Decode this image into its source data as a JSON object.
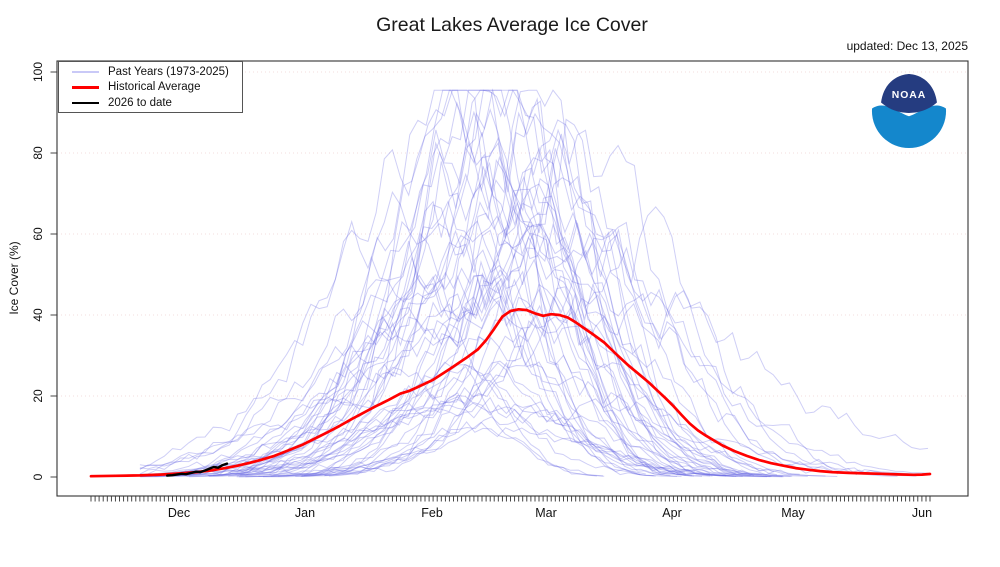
{
  "title": "Great Lakes Average Ice Cover",
  "updated_label": "updated: Dec 13, 2025",
  "legend": {
    "position": "topleft",
    "items": [
      {
        "label": "Past Years (1973-2025)",
        "color": "#c9c9f7"
      },
      {
        "label": "Historical Average",
        "color": "#ff0000"
      },
      {
        "label": "2026 to date",
        "color": "#000000"
      }
    ]
  },
  "noaa_logo": {
    "text": "NOAA",
    "navy": "#253c80",
    "blue": "#1487cc"
  },
  "chart_data": {
    "type": "line",
    "title": "Great Lakes Average Ice Cover",
    "xlabel": "",
    "ylabel": "Ice Cover (%)",
    "ylim": [
      0,
      100
    ],
    "y_ticks": [
      0,
      20,
      40,
      60,
      80,
      100
    ],
    "grid": "faint dotted horizontal lines at y ticks",
    "x_axis_note": "daily tick marks, season runs early Nov through early Jun",
    "season_length_days": 207,
    "x_months": [
      {
        "label": "Dec",
        "day": 21.6
      },
      {
        "label": "Jan",
        "day": 52.6
      },
      {
        "label": "Feb",
        "day": 83.6
      },
      {
        "label": "Mar",
        "day": 111.6
      },
      {
        "label": "Apr",
        "day": 142.6
      },
      {
        "label": "May",
        "day": 172.4
      },
      {
        "label": "Jun",
        "day": 204
      }
    ],
    "series": [
      {
        "name": "Historical Average",
        "color": "#ff0000",
        "width": 2.7,
        "points": [
          [
            0,
            0.2
          ],
          [
            6,
            0.3
          ],
          [
            12,
            0.4
          ],
          [
            17,
            0.6
          ],
          [
            22,
            0.9
          ],
          [
            26,
            1.2
          ],
          [
            30,
            1.7
          ],
          [
            33,
            2.2
          ],
          [
            36,
            2.8
          ],
          [
            39,
            3.5
          ],
          [
            42,
            4.3
          ],
          [
            45,
            5.2
          ],
          [
            48,
            6.4
          ],
          [
            52,
            8.0
          ],
          [
            55,
            9.5
          ],
          [
            58,
            11.0
          ],
          [
            61,
            12.6
          ],
          [
            64,
            14.3
          ],
          [
            67,
            15.9
          ],
          [
            70,
            17.5
          ],
          [
            73,
            19.0
          ],
          [
            76,
            20.6
          ],
          [
            78,
            21.2
          ],
          [
            80,
            22.1
          ],
          [
            84,
            24.0
          ],
          [
            88,
            26.6
          ],
          [
            92,
            29.3
          ],
          [
            95,
            31.5
          ],
          [
            97,
            33.8
          ],
          [
            99,
            36.6
          ],
          [
            101,
            39.6
          ],
          [
            103,
            41.0
          ],
          [
            105,
            41.4
          ],
          [
            107,
            41.2
          ],
          [
            109,
            40.4
          ],
          [
            111,
            39.8
          ],
          [
            113,
            40.2
          ],
          [
            115,
            40.0
          ],
          [
            117,
            39.4
          ],
          [
            119,
            38.2
          ],
          [
            121,
            36.8
          ],
          [
            123,
            35.4
          ],
          [
            126,
            33.2
          ],
          [
            129,
            30.3
          ],
          [
            132,
            27.5
          ],
          [
            135,
            25.0
          ],
          [
            137,
            23.3
          ],
          [
            139,
            21.4
          ],
          [
            141,
            19.5
          ],
          [
            143,
            17.5
          ],
          [
            145,
            15.3
          ],
          [
            147,
            13.2
          ],
          [
            149,
            11.5
          ],
          [
            151,
            10.2
          ],
          [
            153,
            9.0
          ],
          [
            155,
            7.8
          ],
          [
            158,
            6.4
          ],
          [
            161,
            5.2
          ],
          [
            164,
            4.2
          ],
          [
            167,
            3.4
          ],
          [
            170,
            2.8
          ],
          [
            173,
            2.2
          ],
          [
            176,
            1.8
          ],
          [
            179,
            1.45
          ],
          [
            182,
            1.2
          ],
          [
            186,
            1.0
          ],
          [
            190,
            0.9
          ],
          [
            194,
            0.8
          ],
          [
            198,
            0.65
          ],
          [
            202,
            0.55
          ],
          [
            204,
            0.6
          ],
          [
            206,
            0.75
          ]
        ]
      },
      {
        "name": "2026 to date",
        "color": "#000000",
        "width": 2.4,
        "points": [
          [
            18.7,
            0.35
          ],
          [
            20,
            0.45
          ],
          [
            21,
            0.6
          ],
          [
            22.3,
            0.8
          ],
          [
            23.3,
            0.7
          ],
          [
            24.6,
            1.0
          ],
          [
            25.8,
            1.3
          ],
          [
            26.8,
            1.2
          ],
          [
            28,
            1.6
          ],
          [
            29.2,
            2.1
          ],
          [
            30.2,
            2.5
          ],
          [
            31.2,
            2.3
          ],
          [
            32.2,
            2.9
          ],
          [
            33.4,
            3.3
          ]
        ]
      }
    ],
    "past_years": {
      "name": "Past Years (1973-2025)",
      "count": 53,
      "color": "#6060e2",
      "opacity": 0.3,
      "width": 1,
      "synthesized": true,
      "seed": 11,
      "envelope_max": [
        [
          22,
          4
        ],
        [
          40,
          14
        ],
        [
          53,
          30
        ],
        [
          70,
          62
        ],
        [
          84,
          82
        ],
        [
          100,
          94
        ],
        [
          112,
          93
        ],
        [
          125,
          86
        ],
        [
          143,
          60
        ],
        [
          155,
          42
        ],
        [
          165,
          25
        ],
        [
          173,
          18
        ],
        [
          185,
          10
        ],
        [
          195,
          5
        ],
        [
          204,
          3
        ]
      ]
    }
  }
}
